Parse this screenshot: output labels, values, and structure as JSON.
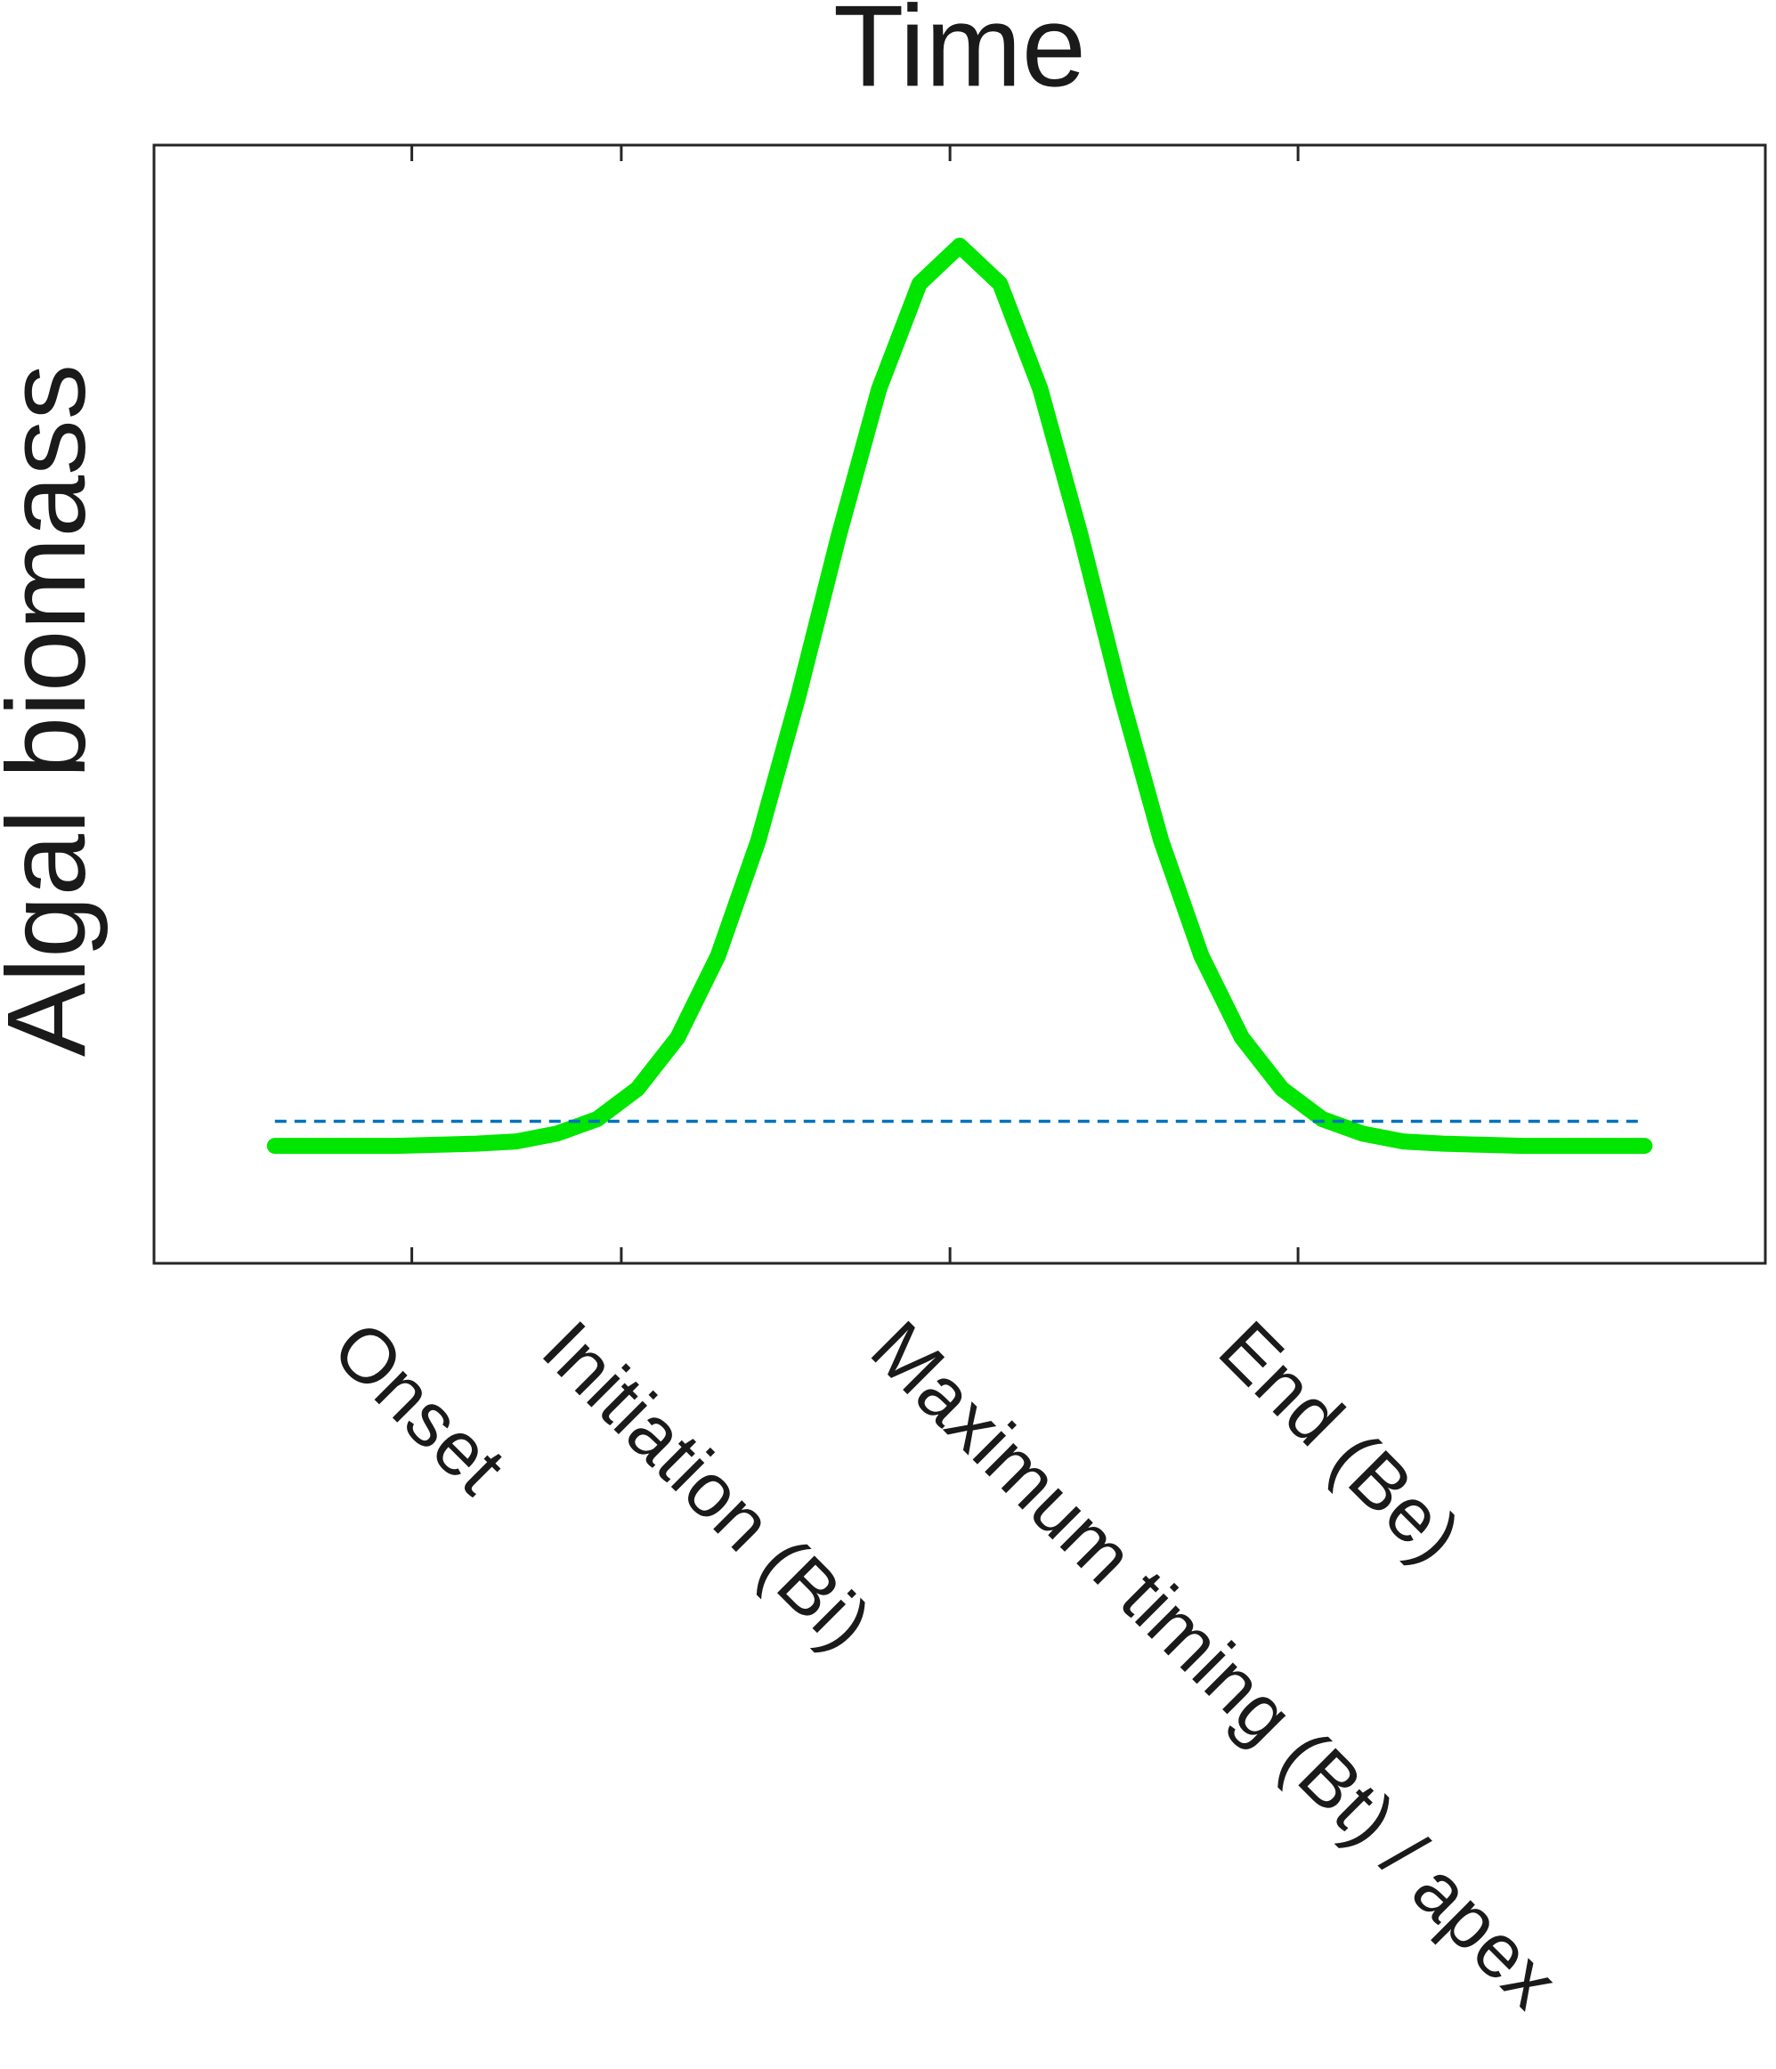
{
  "chart_data": {
    "type": "line",
    "title": "Time",
    "y_label": "Algal biomass",
    "xlim": [
      0,
      100
    ],
    "ylim": [
      0,
      100
    ],
    "xticks": [
      {
        "value": 16,
        "label": "Onset"
      },
      {
        "value": 29,
        "label": "Initiation (Bi)"
      },
      {
        "value": 49.4,
        "label": "Maximum timing (Bt) / apex"
      },
      {
        "value": 71,
        "label": "End (Be)"
      }
    ],
    "grid": false,
    "series": [
      {
        "color": "#00e600",
        "dashed": false,
        "x": [
          7.5,
          10,
          12.5,
          15,
          17.5,
          20,
          22.5,
          25,
          27.5,
          30,
          32.5,
          35,
          37.5,
          40,
          42.5,
          45,
          47.5,
          50,
          52.5,
          55,
          57.5,
          60,
          62.5,
          65,
          67.5,
          70,
          72.5,
          75,
          77.5,
          80,
          82.5,
          85,
          87.5,
          90,
          92.5
        ],
        "values": [
          10.5,
          10.5,
          10.5,
          10.5,
          10.6,
          10.7,
          10.9,
          11.6,
          12.9,
          15.6,
          20.2,
          27.5,
          37.8,
          50.8,
          65.1,
          78.2,
          87.6,
          91.0,
          87.6,
          78.2,
          65.1,
          50.8,
          37.8,
          27.5,
          20.2,
          15.6,
          12.9,
          11.6,
          10.9,
          10.7,
          10.6,
          10.5,
          10.5,
          10.5,
          10.5
        ]
      },
      {
        "color": "#0072bd",
        "dashed": true,
        "x": [
          7.5,
          92.5
        ],
        "values": [
          12.7,
          12.7
        ]
      }
    ]
  }
}
